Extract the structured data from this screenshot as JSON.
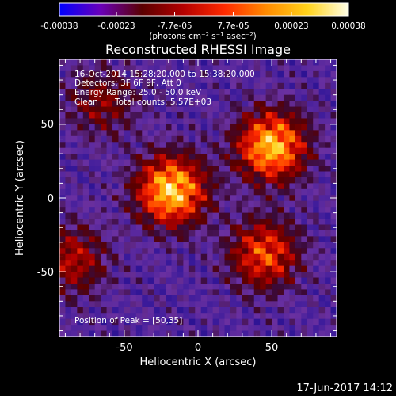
{
  "colorbar": {
    "ticks": [
      "-0.00038",
      "-0.00023",
      "-7.7e-05",
      "7.7e-05",
      "0.00023",
      "0.00038"
    ],
    "tick_values": [
      -0.00038,
      -0.00023,
      -7.7e-05,
      7.7e-05,
      0.00023,
      0.00038
    ],
    "range": [
      -0.00038,
      0.00038
    ],
    "units_line": "(photons cm⁻² s⁻¹ asec⁻²)",
    "stops": [
      "#0000ff",
      "#6a00b8",
      "#5a0000",
      "#b40000",
      "#ff2a00",
      "#ff8a00",
      "#ffd21a",
      "#ffffe8"
    ]
  },
  "chart_data": {
    "type": "heatmap",
    "title": "Reconstructed RHESSI Image",
    "xlabel": "Heliocentric X (arcsec)",
    "ylabel": "Heliocentric Y (arcsec)",
    "xlim": [
      -94,
      94
    ],
    "ylim": [
      -94,
      94
    ],
    "x_ticks": [
      "-50",
      "0",
      "50"
    ],
    "y_ticks": [
      "-50",
      "0",
      "50"
    ],
    "grid": false,
    "pixel_grid": [
      47,
      47
    ],
    "peak_position": [
      50,
      35
    ],
    "peak_sources": [
      {
        "x": -18,
        "y": 5,
        "strength": 1.0
      },
      {
        "x": 50,
        "y": 35,
        "strength": 0.95
      },
      {
        "x": 45,
        "y": -38,
        "strength": 0.65
      },
      {
        "x": -85,
        "y": -42,
        "strength": 0.45
      },
      {
        "x": -65,
        "y": 65,
        "strength": 0.35
      }
    ]
  },
  "annotations": {
    "time_range": "16-Oct-2014 15:28:20.000 to 15:38:20.000",
    "detectors": "Detectors: 3F 6F 9F, Att 0",
    "energy": "Energy Range: 25.0 - 50.0 keV",
    "clean": "Clean",
    "total_counts": "Total counts: 5.57E+03",
    "peak": "Position of Peak = [50,35]"
  },
  "footer": {
    "date": "17-Jun-2017 14:12"
  }
}
